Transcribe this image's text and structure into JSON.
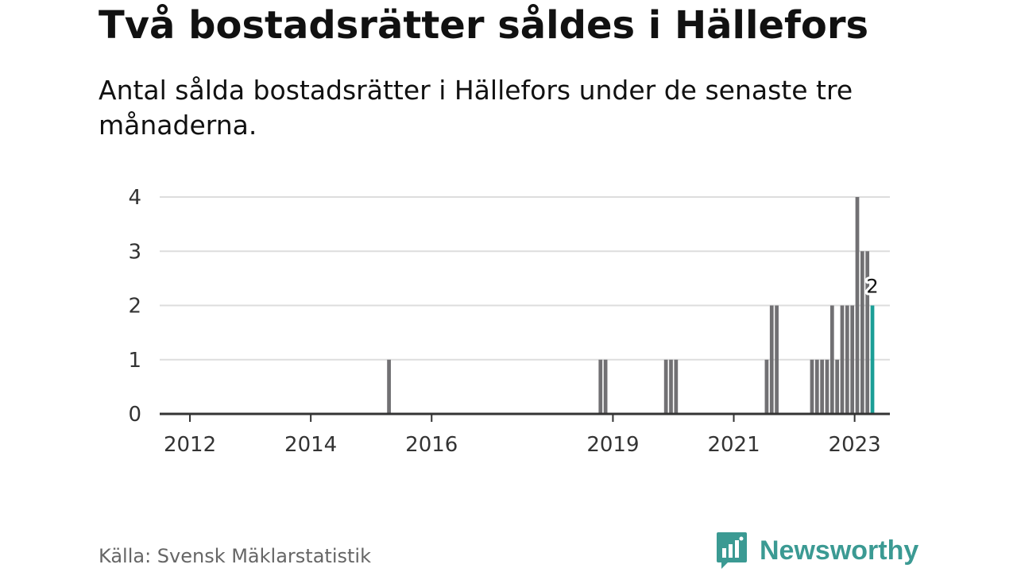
{
  "header": {
    "title": "Två bostadsrätter såldes i Hällefors",
    "subtitle": "Antal sålda bostadsrätter i Hällefors under de senaste tre månaderna."
  },
  "footer": {
    "source": "Källa: Svensk Mäklarstatistik",
    "brand": "Newsworthy"
  },
  "colors": {
    "bar": "#717073",
    "highlight": "#1b9e96",
    "grid": "#dddddd",
    "axis": "#333333",
    "brand": "#3b9a93"
  },
  "chart_data": {
    "type": "bar",
    "title": "",
    "xlabel": "",
    "ylabel": "",
    "ylim": [
      0,
      4
    ],
    "yticks": [
      0,
      1,
      2,
      3,
      4
    ],
    "xlim": [
      "2011-07",
      "2023-08"
    ],
    "xticks": [
      {
        "date": "2012-01",
        "label": "2012"
      },
      {
        "date": "2014-01",
        "label": "2014"
      },
      {
        "date": "2016-01",
        "label": "2016"
      },
      {
        "date": "2019-01",
        "label": "2019"
      },
      {
        "date": "2021-01",
        "label": "2021"
      },
      {
        "date": "2023-01",
        "label": "2023"
      }
    ],
    "grid": true,
    "series": [
      {
        "values": [
          {
            "date": "2015-04",
            "value": 1
          },
          {
            "date": "2018-10",
            "value": 1
          },
          {
            "date": "2018-11",
            "value": 1
          },
          {
            "date": "2019-11",
            "value": 1
          },
          {
            "date": "2019-12",
            "value": 1
          },
          {
            "date": "2020-01",
            "value": 1
          },
          {
            "date": "2021-07",
            "value": 1
          },
          {
            "date": "2021-08",
            "value": 2
          },
          {
            "date": "2021-09",
            "value": 2
          },
          {
            "date": "2022-04",
            "value": 1
          },
          {
            "date": "2022-05",
            "value": 1
          },
          {
            "date": "2022-06",
            "value": 1
          },
          {
            "date": "2022-07",
            "value": 1
          },
          {
            "date": "2022-08",
            "value": 2
          },
          {
            "date": "2022-09",
            "value": 1
          },
          {
            "date": "2022-10",
            "value": 2
          },
          {
            "date": "2022-11",
            "value": 2
          },
          {
            "date": "2022-12",
            "value": 2
          },
          {
            "date": "2023-01",
            "value": 4
          },
          {
            "date": "2023-02",
            "value": 3
          },
          {
            "date": "2023-03",
            "value": 3
          },
          {
            "date": "2023-04",
            "value": 2,
            "highlight": true,
            "label": "2"
          }
        ]
      }
    ]
  }
}
